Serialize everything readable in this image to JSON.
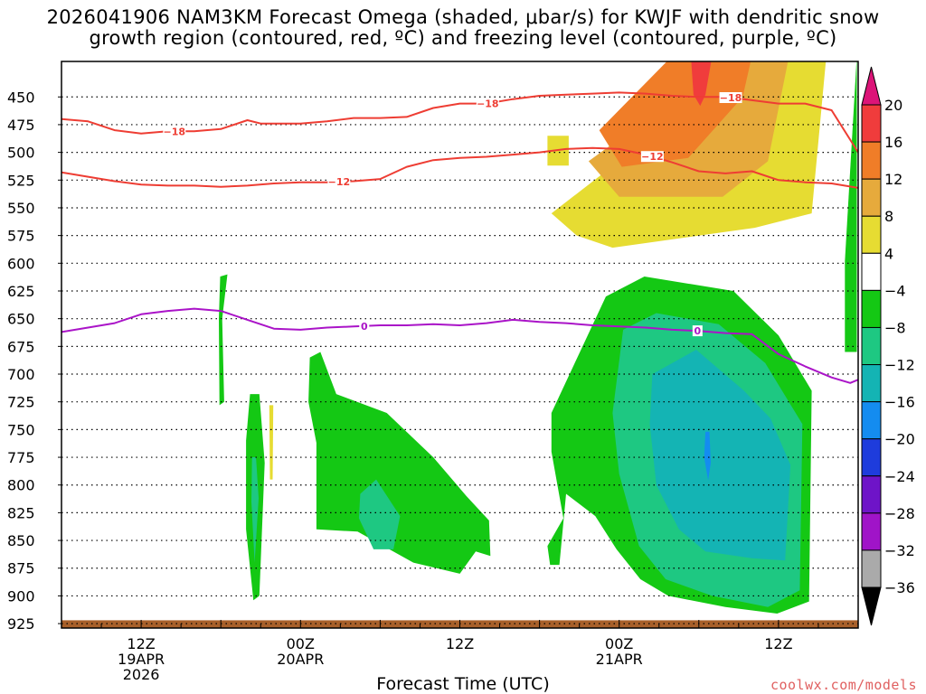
{
  "title_line1": "2026041906 NAM3KM Forecast Omega (shaded, μbar/s) for KWJF with dendritic snow",
  "title_line2": "growth region (contoured, red, ºC) and freezing level (contoured, purple, ºC)",
  "xaxis_title": "Forecast Time (UTC)",
  "credit": "coolwx.com/models",
  "chart_data": {
    "type": "heatmap",
    "x_range_hours": [
      0,
      60
    ],
    "x_ticks": [
      {
        "hour": 6,
        "lines": [
          "12Z",
          "19APR",
          "2026"
        ]
      },
      {
        "hour": 18,
        "lines": [
          "00Z",
          "20APR"
        ]
      },
      {
        "hour": 30,
        "lines": [
          "12Z"
        ]
      },
      {
        "hour": 42,
        "lines": [
          "00Z",
          "21APR"
        ]
      },
      {
        "hour": 54,
        "lines": [
          "12Z"
        ]
      }
    ],
    "y_levels_mb": [
      450,
      475,
      500,
      525,
      550,
      575,
      600,
      625,
      650,
      675,
      700,
      725,
      750,
      775,
      800,
      825,
      850,
      875,
      900,
      925
    ],
    "y_range_mb": [
      418,
      929
    ],
    "colorbar": {
      "labels": [
        "20",
        "16",
        "12",
        "8",
        "4",
        "−4",
        "−8",
        "−12",
        "−16",
        "−20",
        "−24",
        "−28",
        "−32",
        "−36"
      ],
      "colors": [
        "#f03c3c",
        "#f07d28",
        "#e6aa3c",
        "#e6dc32",
        "#ffffff",
        "#14c814",
        "#1ec882",
        "#14b4b4",
        "#148cf0",
        "#1e3cdc",
        "#6e14c8",
        "#a014c8",
        "#aaaaaa"
      ],
      "top_arrow_color": "#dc1478",
      "bottom_arrow_color": "#000000"
    },
    "omega_regions": [
      {
        "color": "#e6dc32",
        "hours": [
          36.9,
          52.2,
          57.6,
          56.5,
          52.2,
          41.5,
          38.8,
          36.9
        ],
        "mb": [
          555,
          413,
          413,
          555,
          568,
          586,
          575,
          555
        ]
      },
      {
        "color": "#e6dc32",
        "hours": [
          36.6,
          38.2,
          38.2,
          36.6
        ],
        "mb": [
          485,
          485,
          512,
          512
        ]
      },
      {
        "color": "#e6aa3c",
        "hours": [
          39.7,
          50.6,
          54.8,
          53.2,
          49.8,
          42.0,
          39.7
        ],
        "mb": [
          508,
          413,
          413,
          508,
          540,
          540,
          508
        ]
      },
      {
        "color": "#f07d28",
        "hours": [
          40.5,
          46.0,
          52.0,
          51.3,
          47.2,
          42.2,
          40.5
        ],
        "mb": [
          480,
          413,
          413,
          450,
          505,
          513,
          480
        ]
      },
      {
        "color": "#f03c3c",
        "hours": [
          47.4,
          49.0,
          48.5,
          48.1,
          47.6
        ],
        "mb": [
          413,
          413,
          448,
          458,
          448
        ]
      },
      {
        "color": "#14c814",
        "hours": [
          59.0,
          59.9,
          59.9,
          59.0
        ],
        "mb": [
          598,
          413,
          680,
          680
        ]
      },
      {
        "color": "#14c814",
        "hours": [
          11.95,
          12.5,
          12.1,
          12.25,
          11.9,
          11.85
        ],
        "mb": [
          612,
          610,
          650,
          725,
          728,
          650
        ]
      },
      {
        "color": "#14c814",
        "hours": [
          14.2,
          14.9,
          15.3,
          14.9,
          14.45,
          13.9,
          13.9
        ],
        "mb": [
          718,
          718,
          780,
          900,
          904,
          840,
          760
        ]
      },
      {
        "color": "#14c814",
        "hours": [
          18.7,
          19.5,
          20.7,
          24.5,
          28.0,
          30.5,
          32.2,
          32.3,
          31.2,
          30.0,
          26.5,
          22.3,
          19.2,
          19.2,
          18.6
        ],
        "mb": [
          685,
          680,
          718,
          735,
          775,
          810,
          832,
          864,
          860,
          880,
          870,
          842,
          840,
          762,
          725
        ]
      },
      {
        "color": "#14c814",
        "hours": [
          36.9,
          41.0,
          43.9,
          50.6,
          54.0,
          56.5,
          56.3,
          53.9,
          50.0,
          45.7,
          43.6,
          41.8,
          40.2,
          38.0,
          37.5,
          36.8,
          36.6,
          37.8,
          36.9
        ],
        "mb": [
          735,
          630,
          612,
          625,
          665,
          715,
          905,
          916,
          910,
          900,
          885,
          858,
          828,
          808,
          872,
          872,
          855,
          830,
          770
        ]
      },
      {
        "color": "#1ec882",
        "hours": [
          42.3,
          44.8,
          49.5,
          53.0,
          55.8,
          55.6,
          53.2,
          49.0,
          45.5,
          43.5,
          42.0,
          41.5
        ],
        "mb": [
          660,
          645,
          655,
          690,
          745,
          895,
          910,
          900,
          885,
          855,
          790,
          735
        ]
      },
      {
        "color": "#1ec882",
        "hours": [
          22.5,
          23.7,
          25.5,
          25.0,
          23.5,
          22.4
        ],
        "mb": [
          808,
          795,
          828,
          858,
          858,
          830
        ]
      },
      {
        "color": "#1ec882",
        "hours": [
          14.35,
          14.65,
          14.85,
          14.55,
          14.3
        ],
        "mb": [
          775,
          775,
          812,
          870,
          815
        ]
      },
      {
        "color": "#14b4b4",
        "hours": [
          44.5,
          47.8,
          51.4,
          53.4,
          54.9,
          54.5,
          52.0,
          48.5,
          46.5,
          44.8,
          44.3
        ],
        "mb": [
          700,
          678,
          715,
          740,
          782,
          868,
          866,
          860,
          840,
          800,
          745
        ]
      },
      {
        "color": "#148cf0",
        "hours": [
          48.5,
          48.8,
          48.9,
          48.7,
          48.4
        ],
        "mb": [
          752,
          752,
          780,
          796,
          775
        ]
      },
      {
        "color": "#e6dc32",
        "hours": [
          15.65,
          15.95,
          15.9,
          15.7
        ],
        "mb": [
          728,
          728,
          795,
          795
        ]
      }
    ],
    "terrain": {
      "color": "#a8602a",
      "mb_top": 922
    },
    "contours": [
      {
        "label": "−18",
        "color": "#ee3d33",
        "hours": [
          0,
          2,
          4,
          6,
          8,
          10,
          12,
          14,
          15,
          16,
          18,
          20,
          22,
          24,
          26,
          28,
          30,
          32,
          34,
          36,
          38,
          40,
          42,
          44,
          46,
          48,
          50,
          52,
          54,
          56,
          58,
          60
        ],
        "mb": [
          470,
          472,
          480,
          483,
          481,
          481,
          479,
          471,
          474,
          474,
          474,
          472,
          469,
          469,
          468,
          460,
          456,
          456,
          452,
          449,
          448,
          447,
          446,
          447,
          449,
          450,
          450,
          453,
          456,
          456,
          462,
          500
        ],
        "label_hours": [
          8.5,
          32.1,
          50.4
        ]
      },
      {
        "label": "−12",
        "color": "#ee3d33",
        "hours": [
          0,
          2,
          4,
          6,
          8,
          10,
          12,
          14,
          16,
          18,
          20,
          22,
          24,
          26,
          28,
          30,
          32,
          34,
          36,
          38,
          40,
          42,
          44,
          46,
          48,
          50,
          52,
          54,
          56,
          58,
          60
        ],
        "mb": [
          518,
          522,
          526,
          529,
          530,
          530,
          531,
          530,
          528,
          527,
          527,
          526,
          524,
          513,
          507,
          505,
          504,
          502,
          500,
          497,
          496,
          497,
          502,
          509,
          517,
          519,
          517,
          525,
          527,
          528,
          532
        ],
        "label_hours": [
          20.9,
          44.5
        ]
      },
      {
        "label": "0",
        "color": "#aa14c8",
        "hours": [
          0,
          2,
          4,
          6,
          8,
          10,
          12,
          14,
          16,
          18,
          20,
          22,
          24,
          26,
          28,
          30,
          32,
          34,
          36,
          38,
          40,
          42,
          44,
          46,
          48,
          50,
          52,
          54,
          56,
          58,
          59.4,
          60
        ],
        "mb": [
          662,
          658,
          654,
          646,
          643,
          641,
          643,
          651,
          659,
          660,
          658,
          657,
          656,
          656,
          655,
          656,
          654,
          651,
          653,
          654,
          656,
          657,
          658,
          660,
          661,
          663,
          664,
          682,
          693,
          703,
          708,
          705
        ],
        "label_hours": [
          22.8,
          47.9
        ]
      }
    ]
  }
}
